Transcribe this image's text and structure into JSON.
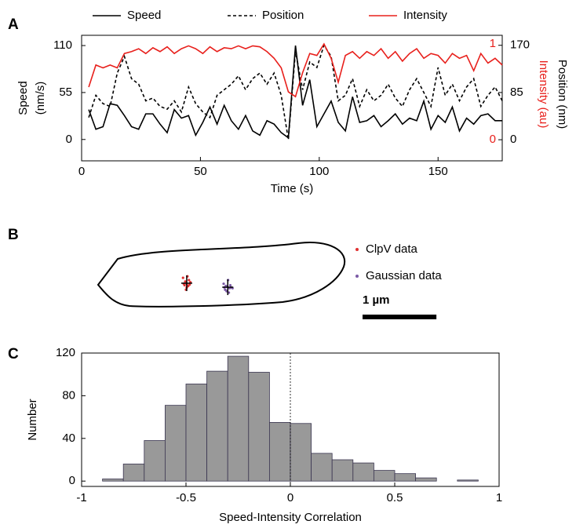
{
  "chart_data": [
    {
      "type": "line",
      "panel": "A",
      "x": [
        3,
        6,
        9,
        12,
        15,
        18,
        21,
        24,
        27,
        30,
        33,
        36,
        39,
        42,
        45,
        48,
        51,
        54,
        57,
        60,
        63,
        66,
        69,
        72,
        75,
        78,
        81,
        84,
        87,
        90,
        93,
        96,
        99,
        102,
        105,
        108,
        111,
        114,
        117,
        120,
        123,
        126,
        129,
        132,
        135,
        138,
        141,
        144,
        147,
        150,
        153,
        156,
        159,
        162,
        165,
        168,
        171,
        174,
        177
      ],
      "xlim": [
        0,
        177
      ],
      "xticks": [
        0,
        50,
        100,
        150
      ],
      "xlabel": "Time (s)",
      "ylim": [
        -25,
        122
      ],
      "yticks": [
        0,
        55,
        110
      ],
      "ylabel": [
        "Speed",
        "(nm/s)"
      ],
      "y2lim": [
        -38,
        188
      ],
      "y2ticks": [
        0,
        85,
        170
      ],
      "y2label": "Position (nm)",
      "y3lim": [
        -0.22,
        1.09
      ],
      "y3ticks": [
        0,
        1
      ],
      "y3label": "Intensity (au)",
      "series": [
        {
          "name": "Speed",
          "color": "#000000",
          "dashed": false,
          "values": [
            35,
            12,
            15,
            42,
            40,
            28,
            15,
            12,
            30,
            30,
            18,
            8,
            35,
            25,
            28,
            5,
            20,
            38,
            18,
            40,
            22,
            12,
            28,
            10,
            5,
            22,
            18,
            8,
            2,
            110,
            40,
            70,
            15,
            30,
            45,
            20,
            10,
            50,
            20,
            22,
            28,
            15,
            22,
            30,
            18,
            25,
            22,
            45,
            12,
            28,
            20,
            38,
            10,
            25,
            18,
            28,
            30,
            22,
            22
          ]
        },
        {
          "name": "Position",
          "color": "#000000",
          "dashed": true,
          "axis": "y2",
          "values": [
            40,
            80,
            65,
            60,
            120,
            150,
            110,
            100,
            70,
            75,
            60,
            55,
            70,
            50,
            95,
            65,
            50,
            40,
            80,
            90,
            100,
            115,
            90,
            110,
            120,
            100,
            120,
            80,
            0,
            160,
            90,
            140,
            130,
            170,
            150,
            70,
            80,
            110,
            60,
            90,
            70,
            80,
            100,
            75,
            60,
            90,
            110,
            85,
            60,
            130,
            80,
            100,
            70,
            95,
            110,
            60,
            80,
            95,
            70
          ]
        },
        {
          "name": "Intensity",
          "color": "#e8201c",
          "dashed": false,
          "axis": "y3",
          "values": [
            0.55,
            0.78,
            0.75,
            0.78,
            0.75,
            0.9,
            0.92,
            0.95,
            0.9,
            0.96,
            0.92,
            0.97,
            0.9,
            0.95,
            0.98,
            0.95,
            0.9,
            0.97,
            0.92,
            0.96,
            0.95,
            0.98,
            0.95,
            0.98,
            0.97,
            0.92,
            0.85,
            0.75,
            0.5,
            0.45,
            0.7,
            0.9,
            0.88,
            1.0,
            0.85,
            0.6,
            0.88,
            0.92,
            0.85,
            0.92,
            0.88,
            0.95,
            0.85,
            0.92,
            0.82,
            0.9,
            0.95,
            0.85,
            0.9,
            0.88,
            0.8,
            0.9,
            0.85,
            0.88,
            0.72,
            0.9,
            0.8,
            0.85,
            0.78
          ]
        }
      ]
    },
    {
      "type": "scatter",
      "panel": "B",
      "xlim": [
        0,
        3.4
      ],
      "ylim": [
        0,
        0.9
      ],
      "series": [
        {
          "name": "ClpV data",
          "color": "#e03030",
          "x": [
            1.15,
            1.18,
            1.2,
            1.22,
            1.25,
            1.19,
            1.21,
            1.17,
            1.23,
            1.2,
            1.16,
            1.24
          ],
          "y": [
            0.38,
            0.33,
            0.3,
            0.27,
            0.32,
            0.22,
            0.4,
            0.28,
            0.35,
            0.25,
            0.3,
            0.29
          ]
        },
        {
          "name": "Gaussian data",
          "color": "#7b5aa6",
          "x": [
            1.7,
            1.75,
            1.78,
            1.72,
            1.8,
            1.76,
            1.74,
            1.79,
            1.73,
            1.77,
            1.71,
            1.82
          ],
          "y": [
            0.3,
            0.26,
            0.24,
            0.22,
            0.25,
            0.35,
            0.2,
            0.28,
            0.27,
            0.18,
            0.25,
            0.24
          ]
        }
      ],
      "scale_bar": {
        "length": 1,
        "label": "1 µm"
      }
    },
    {
      "type": "histogram",
      "panel": "C",
      "bins": [
        -0.9,
        -0.8,
        -0.7,
        -0.6,
        -0.5,
        -0.4,
        -0.3,
        -0.2,
        -0.1,
        0,
        0.1,
        0.2,
        0.3,
        0.4,
        0.5,
        0.6,
        0.7,
        0.8,
        0.9
      ],
      "counts": [
        2,
        16,
        38,
        71,
        91,
        103,
        117,
        102,
        55,
        54,
        26,
        20,
        17,
        10,
        7,
        3,
        0,
        1
      ],
      "color": "#999999",
      "edgecolor": "#3a3550",
      "xlim": [
        -1,
        1
      ],
      "xticks": [
        -1,
        -0.5,
        0,
        0.5,
        1
      ],
      "xlabel": "Speed-Intensity Correlation",
      "ylim": [
        -5,
        120
      ],
      "yticks": [
        0,
        40,
        80,
        120
      ],
      "ylabel": "Number",
      "reference_line": 0
    }
  ]
}
